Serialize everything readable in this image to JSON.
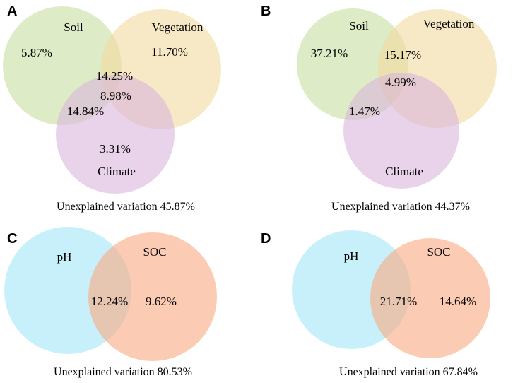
{
  "panels": {
    "a": {
      "letter": "A",
      "set_labels": {
        "soil": "Soil",
        "vegetation": "Vegetation",
        "climate": "Climate"
      },
      "values": {
        "soil_only": "5.87%",
        "vegetation_only": "11.70%",
        "climate_only": "3.31%",
        "soil_vegetation": "14.25%",
        "all_three": "8.98%",
        "soil_climate": "14.84%"
      },
      "caption": "Unexplained variation 45.87%"
    },
    "b": {
      "letter": "B",
      "set_labels": {
        "soil": "Soil",
        "vegetation": "Vegetation",
        "climate": "Climate"
      },
      "values": {
        "soil_only": "37.21%",
        "soil_vegetation": "15.17%",
        "all_three": "4.99%",
        "soil_climate": "1.47%"
      },
      "caption": "Unexplained variation 44.37%"
    },
    "c": {
      "letter": "C",
      "set_labels": {
        "ph": "pH",
        "soc": "SOC"
      },
      "values": {
        "overlap": "12.24%",
        "soc_only": "9.62%"
      },
      "caption": "Unexplained variation 80.53%"
    },
    "d": {
      "letter": "D",
      "set_labels": {
        "ph": "pH",
        "soc": "SOC"
      },
      "values": {
        "overlap": "21.71%",
        "soc_only": "14.64%"
      },
      "caption": "Unexplained variation 67.84%"
    }
  },
  "colors": {
    "soil": "#c5dd9c",
    "vegetation": "#f3d99c",
    "climate": "#d9b4dc",
    "ph": "#9fe6f7",
    "soc": "#f9ad85"
  }
}
